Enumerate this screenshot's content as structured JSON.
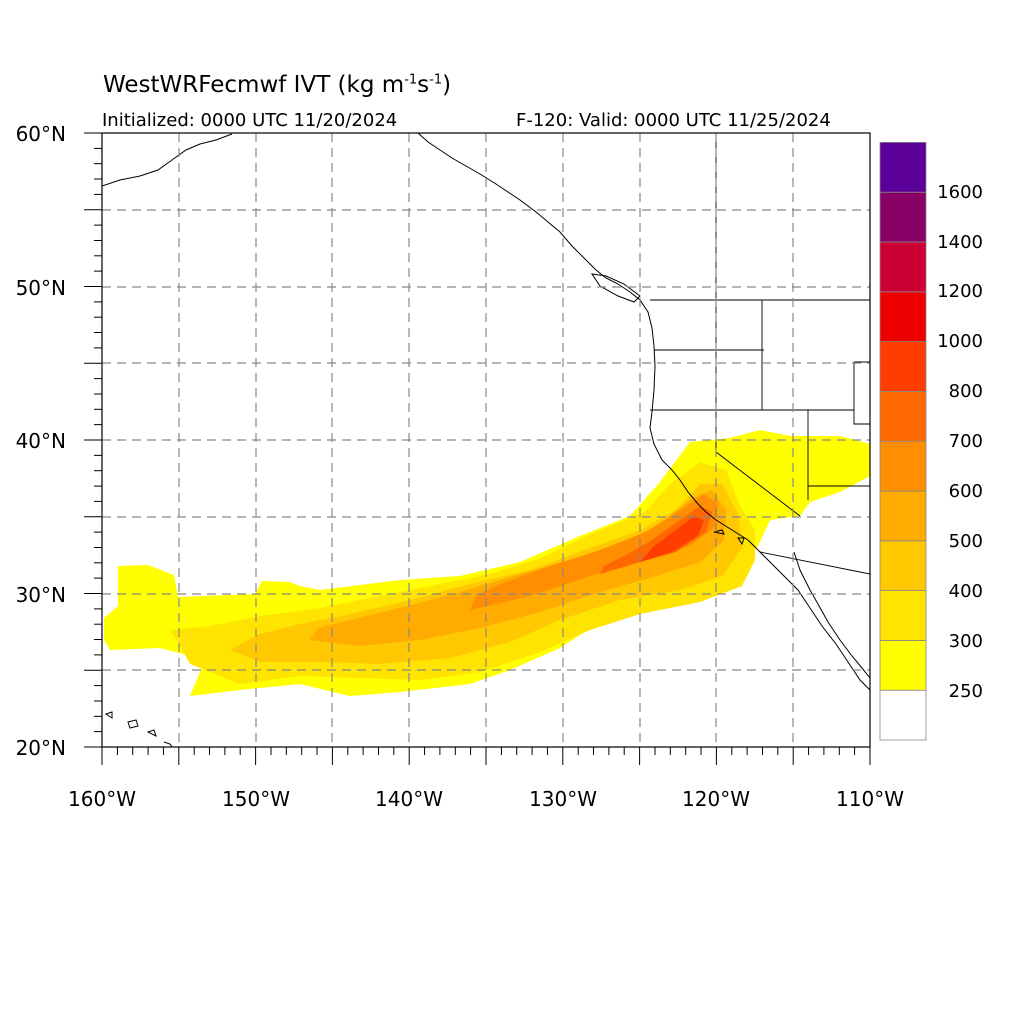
{
  "header": {
    "model": "WestWRFecmwf",
    "field": "IVT",
    "units_base": "kg m",
    "units_exp1": "-1",
    "units_s": "s",
    "units_exp2": "-1",
    "initialized": "Initialized: 0000 UTC 11/20/2024",
    "valid": "F-120: Valid: 0000 UTC 11/25/2024"
  },
  "map": {
    "lat_labels": [
      "60°N",
      "50°N",
      "40°N",
      "30°N",
      "20°N"
    ],
    "lon_labels": [
      "160°W",
      "150°W",
      "140°W",
      "130°W",
      "120°W",
      "110°W"
    ],
    "lon_range": [
      -160,
      -110
    ],
    "lat_range": [
      20,
      60
    ],
    "grid": true,
    "grid_interval_deg": 5
  },
  "colorbar": {
    "labels": [
      "250",
      "300",
      "400",
      "500",
      "600",
      "700",
      "800",
      "1000",
      "1200",
      "1400",
      "1600"
    ],
    "levels": [
      250,
      300,
      400,
      500,
      600,
      700,
      800,
      1000,
      1200,
      1400,
      1600
    ],
    "colors": [
      "#ffffff",
      "#ffff00",
      "#ffe400",
      "#ffc800",
      "#ffab00",
      "#ff8e00",
      "#ff6800",
      "#ff3d00",
      "#ee0000",
      "#cc0033",
      "#880066",
      "#5a0099"
    ]
  }
}
